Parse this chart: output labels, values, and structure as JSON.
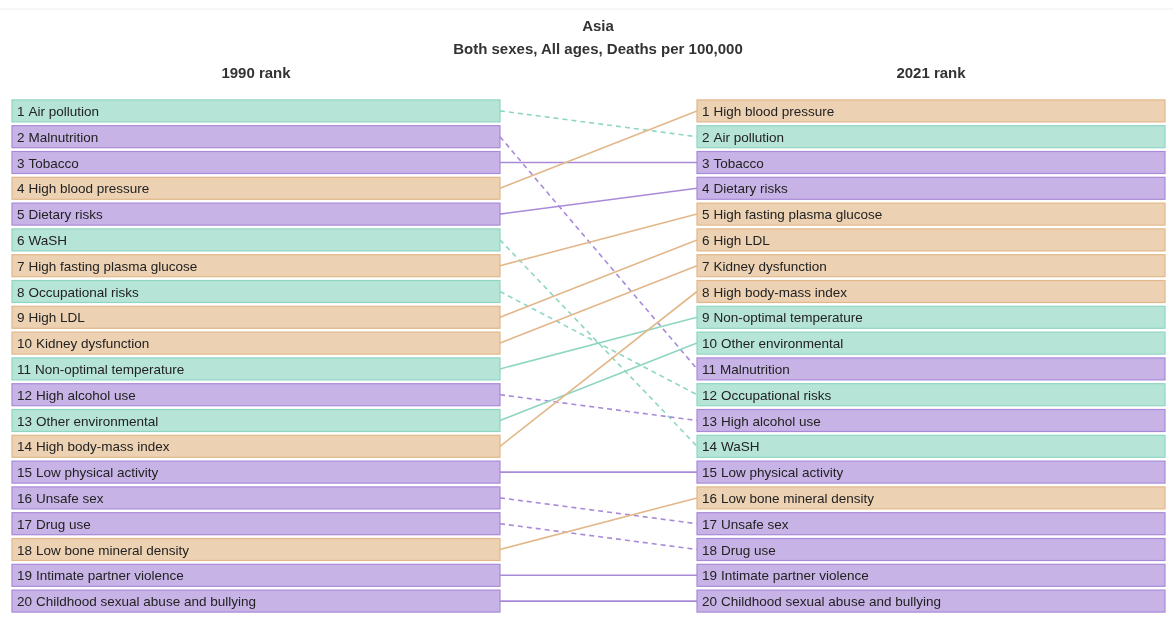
{
  "chart_data": {
    "type": "other",
    "title": "Asia",
    "subtitle": "Both sexes, All ages, Deaths per 100,000",
    "categories": [
      "1990 rank",
      "2021 rank"
    ],
    "data_labels": true,
    "series": [
      {
        "name": "Air pollution",
        "color": "#8fd6c2",
        "values": [
          1,
          2
        ],
        "line_style": "dashed"
      },
      {
        "name": "Malnutrition",
        "color": "#a98ad8",
        "values": [
          2,
          11
        ],
        "line_style": "dashed"
      },
      {
        "name": "Tobacco",
        "color": "#a98ad8",
        "values": [
          3,
          3
        ],
        "line_style": "solid"
      },
      {
        "name": "High blood pressure",
        "color": "#e2b88a",
        "values": [
          4,
          1
        ],
        "line_style": "solid"
      },
      {
        "name": "Dietary risks",
        "color": "#a98ad8",
        "values": [
          5,
          4
        ],
        "line_style": "solid"
      },
      {
        "name": "WaSH",
        "color": "#8fd6c2",
        "values": [
          6,
          14
        ],
        "line_style": "dashed"
      },
      {
        "name": "High fasting plasma glucose",
        "color": "#e2b88a",
        "values": [
          7,
          5
        ],
        "line_style": "solid"
      },
      {
        "name": "Occupational risks",
        "color": "#8fd6c2",
        "values": [
          8,
          12
        ],
        "line_style": "dashed"
      },
      {
        "name": "High LDL",
        "color": "#e2b88a",
        "values": [
          9,
          6
        ],
        "line_style": "solid"
      },
      {
        "name": "Kidney dysfunction",
        "color": "#e2b88a",
        "values": [
          10,
          7
        ],
        "line_style": "solid"
      },
      {
        "name": "Non-optimal temperature",
        "color": "#8fd6c2",
        "values": [
          11,
          9
        ],
        "line_style": "solid"
      },
      {
        "name": "High alcohol use",
        "color": "#a98ad8",
        "values": [
          12,
          13
        ],
        "line_style": "dashed"
      },
      {
        "name": "Other environmental",
        "color": "#8fd6c2",
        "values": [
          13,
          10
        ],
        "line_style": "solid"
      },
      {
        "name": "High body-mass index",
        "color": "#e2b88a",
        "values": [
          14,
          8
        ],
        "line_style": "solid"
      },
      {
        "name": "Low physical activity",
        "color": "#a98ad8",
        "values": [
          15,
          15
        ],
        "line_style": "solid"
      },
      {
        "name": "Unsafe sex",
        "color": "#a98ad8",
        "values": [
          16,
          17
        ],
        "line_style": "dashed"
      },
      {
        "name": "Drug use",
        "color": "#a98ad8",
        "values": [
          17,
          18
        ],
        "line_style": "dashed"
      },
      {
        "name": "Low bone mineral density",
        "color": "#e2b88a",
        "values": [
          18,
          16
        ],
        "line_style": "solid"
      },
      {
        "name": "Intimate partner violence",
        "color": "#a98ad8",
        "values": [
          19,
          19
        ],
        "line_style": "solid"
      },
      {
        "name": "Childhood sexual abuse and bullying",
        "color": "#a98ad8",
        "values": [
          20,
          20
        ],
        "line_style": "solid"
      }
    ]
  }
}
